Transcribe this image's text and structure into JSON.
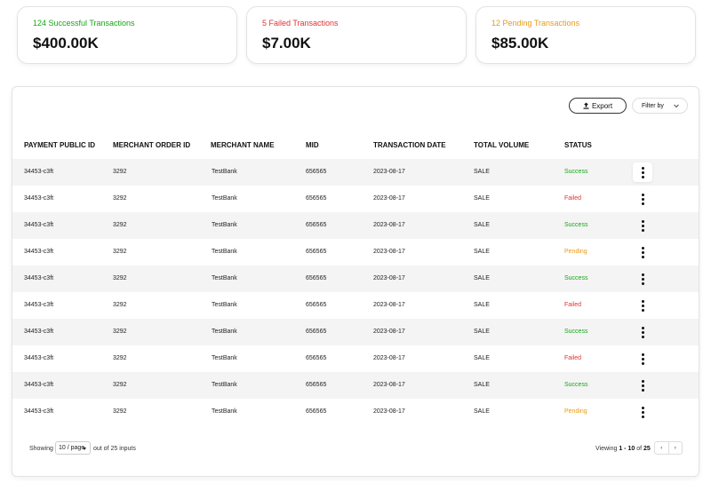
{
  "summary_cards": [
    {
      "label": "124 Successful Transactions",
      "amount": "$400.00K",
      "color": "#17a617"
    },
    {
      "label": "5 Failed Transactions",
      "amount": "$7.00K",
      "color": "#e23232"
    },
    {
      "label": "12 Pending Transactions",
      "amount": "$85.00K",
      "color": "#e89a1a"
    }
  ],
  "toolbar": {
    "export_label": "Export",
    "export_icon": "upload-icon",
    "filter_label": "Filter by",
    "filter_icon": "chevron-down-icon"
  },
  "table": {
    "columns": [
      "PAYMENT PUBLIC ID",
      "MERCHANT ORDER ID",
      "MERCHANT NAME",
      "MID",
      "TRANSACTION DATE",
      "TOTAL VOLUME",
      "STATUS"
    ],
    "rows": [
      {
        "payment_id": "34453-c3ft",
        "order_id": "3292",
        "merchant": "TestBank",
        "mid": "656565",
        "date": "2023-08-17",
        "volume": "SALE",
        "status": "Success"
      },
      {
        "payment_id": "34453-c3ft",
        "order_id": "3292",
        "merchant": "TestBank",
        "mid": "656565",
        "date": "2023-08-17",
        "volume": "SALE",
        "status": "Failed"
      },
      {
        "payment_id": "34453-c3ft",
        "order_id": "3292",
        "merchant": "TestBank",
        "mid": "656565",
        "date": "2023-08-17",
        "volume": "SALE",
        "status": "Success"
      },
      {
        "payment_id": "34453-c3ft",
        "order_id": "3292",
        "merchant": "TestBank",
        "mid": "656565",
        "date": "2023-08-17",
        "volume": "SALE",
        "status": "Pending"
      },
      {
        "payment_id": "34453-c3ft",
        "order_id": "3292",
        "merchant": "TestBank",
        "mid": "656565",
        "date": "2023-08-17",
        "volume": "SALE",
        "status": "Success"
      },
      {
        "payment_id": "34453-c3ft",
        "order_id": "3292",
        "merchant": "TestBank",
        "mid": "656565",
        "date": "2023-08-17",
        "volume": "SALE",
        "status": "Failed"
      },
      {
        "payment_id": "34453-c3ft",
        "order_id": "3292",
        "merchant": "TestBank",
        "mid": "656565",
        "date": "2023-08-17",
        "volume": "SALE",
        "status": "Success"
      },
      {
        "payment_id": "34453-c3ft",
        "order_id": "3292",
        "merchant": "TestBank",
        "mid": "656565",
        "date": "2023-08-17",
        "volume": "SALE",
        "status": "Failed"
      },
      {
        "payment_id": "34453-c3ft",
        "order_id": "3292",
        "merchant": "TestBank",
        "mid": "656565",
        "date": "2023-08-17",
        "volume": "SALE",
        "status": "Success"
      },
      {
        "payment_id": "34453-c3ft",
        "order_id": "3292",
        "merchant": "TestBank",
        "mid": "656565",
        "date": "2023-08-17",
        "volume": "SALE",
        "status": "Pending"
      }
    ],
    "row_menu_icon": "more-vertical-icon"
  },
  "status_colors": {
    "Success": "#17a617",
    "Failed": "#e23232",
    "Pending": "#e89a1a"
  },
  "footer": {
    "showing_label": "Showing",
    "per_page_value": "10 / page",
    "out_of_label": "out of 25 inputs",
    "viewing_prefix": "Viewing",
    "viewing_range": "1 - 10",
    "viewing_of": "of",
    "viewing_total": "25",
    "prev_label": "‹",
    "next_label": "›"
  }
}
